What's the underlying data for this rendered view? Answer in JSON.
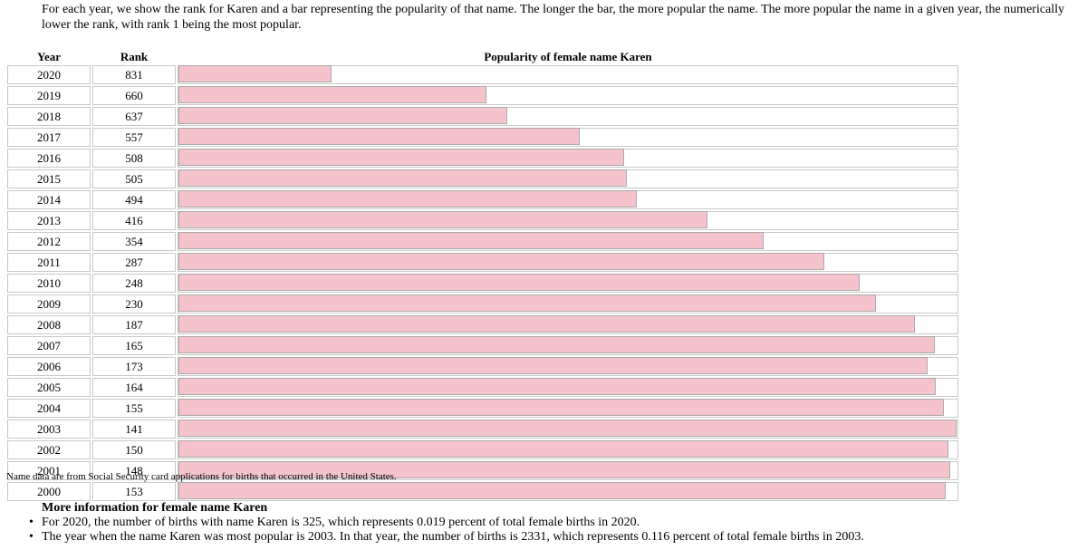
{
  "intro": "For each year, we show the rank for Karen and a bar representing the popularity of that name. The longer the bar, the more popular the name. The more popular the name in a given year, the numerically lower the rank, with rank 1 being the most popular.",
  "headers": {
    "year": "Year",
    "rank": "Rank",
    "popularity": "Popularity of female name Karen"
  },
  "source_note": "Name data are from Social Security card applications for births that occurred in the United States.",
  "more_info": {
    "title": "More information for female name Karen",
    "facts": [
      "For 2020, the number of births with name Karen is 325, which represents 0.019 percent of total female births in 2020.",
      "The year when the name Karen was most popular is 2003. In that year, the number of births is 2331, which represents 0.116 percent of total female births in 2003."
    ]
  },
  "colors": {
    "bar_fill": "#f5c3cc",
    "bar_border": "#a8a8a8"
  },
  "chart_data": {
    "type": "bar",
    "title": "Popularity of female name Karen",
    "categories": [
      "2020",
      "2019",
      "2018",
      "2017",
      "2016",
      "2015",
      "2014",
      "2013",
      "2012",
      "2011",
      "2010",
      "2009",
      "2008",
      "2007",
      "2006",
      "2005",
      "2004",
      "2003",
      "2002",
      "2001",
      "2000"
    ],
    "ranks": [
      831,
      660,
      637,
      557,
      508,
      505,
      494,
      416,
      354,
      287,
      248,
      230,
      187,
      165,
      173,
      164,
      155,
      141,
      150,
      148,
      153
    ],
    "rank_scale_max": 1000,
    "orientation": "horizontal"
  }
}
